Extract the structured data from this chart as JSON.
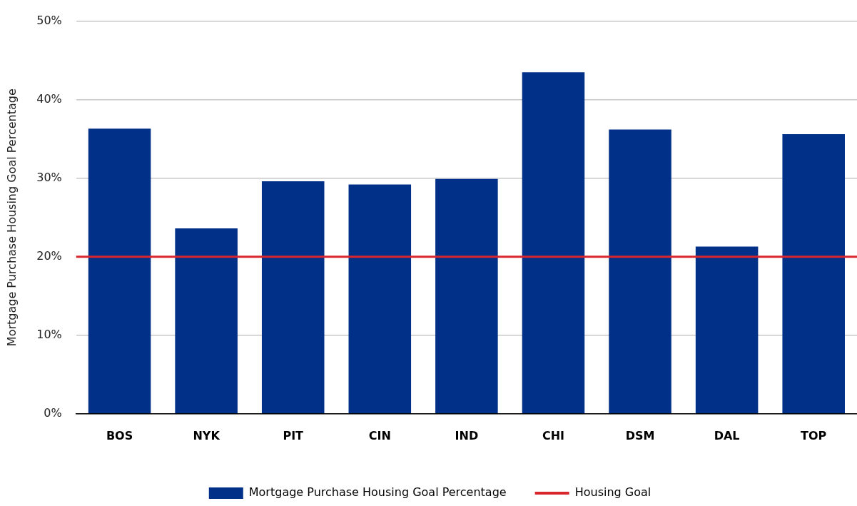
{
  "chart_data": {
    "type": "bar",
    "ylabel": "Mortgage Purchase Housing Goal Percentage",
    "categories": [
      "BOS",
      "NYK",
      "PIT",
      "CIN",
      "IND",
      "CHI",
      "DSM",
      "DAL",
      "TOP"
    ],
    "series": [
      {
        "name": "Mortgage Purchase Housing Goal Percentage",
        "color": "#003087",
        "values": [
          36.3,
          23.6,
          29.6,
          29.2,
          29.9,
          43.5,
          36.2,
          21.3,
          35.6
        ]
      }
    ],
    "ylim": [
      0,
      50
    ],
    "yticks": [
      {
        "value": 0,
        "label": "0%"
      },
      {
        "value": 10,
        "label": "10%"
      },
      {
        "value": 20,
        "label": "20%"
      },
      {
        "value": 30,
        "label": "30%"
      },
      {
        "value": 40,
        "label": "40%"
      },
      {
        "value": 50,
        "label": "50%"
      }
    ],
    "ref_lines": [
      {
        "axis": "y",
        "value": 20,
        "label": "Housing Goal",
        "color": "#d9262e"
      }
    ],
    "grid": "y",
    "legend": "bottom"
  }
}
